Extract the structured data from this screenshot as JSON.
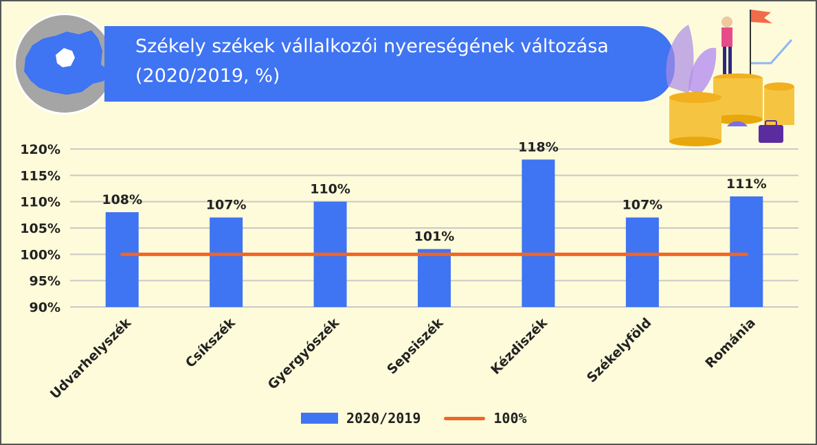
{
  "header": {
    "title_line1": "Székely székek vállalkozói nyereségének változása",
    "title_line2": "(2020/2019, %)"
  },
  "colors": {
    "bar": "#3f74f2",
    "reference_line": "#f26522",
    "background": "#fdfbd9",
    "banner": "#3f74f2"
  },
  "icons": {
    "map": "romania-map-icon",
    "decoration": "business-growth-illustration"
  },
  "chart_data": {
    "type": "bar",
    "categories": [
      "Udvarhelyszék",
      "Csíkszék",
      "Gyergyószék",
      "Sepsiszék",
      "Kézdiszék",
      "Székelyföld",
      "Románia"
    ],
    "series": [
      {
        "name": "2020/2019",
        "values": [
          108,
          107,
          110,
          101,
          118,
          107,
          111
        ],
        "kind": "bar"
      },
      {
        "name": "100%",
        "values": [
          100,
          100,
          100,
          100,
          100,
          100,
          100
        ],
        "kind": "line"
      }
    ],
    "data_labels": [
      "108%",
      "107%",
      "110%",
      "101%",
      "118%",
      "107%",
      "111%"
    ],
    "yticks": [
      "90%",
      "95%",
      "100%",
      "105%",
      "110%",
      "115%",
      "120%"
    ],
    "ylim": [
      90,
      120
    ],
    "grid": true,
    "legend_position": "bottom",
    "title": "Székely székek vállalkozói nyereségének változása (2020/2019, %)"
  }
}
